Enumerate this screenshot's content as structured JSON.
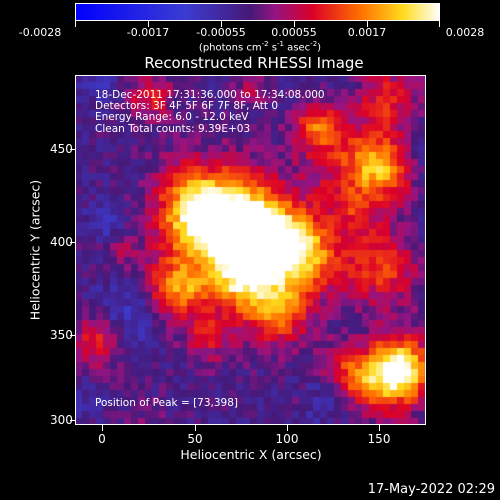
{
  "colorbar": {
    "labels": [
      "-0.0028",
      "-0.0017",
      "-0.00055",
      "0.00055",
      "0.0017",
      "0.0028"
    ],
    "unit_main": "(photons cm",
    "unit_exp1": "-2",
    "unit_mid": " s",
    "unit_exp2": "-1",
    "unit_mid2": " asec",
    "unit_exp3": "-2",
    "unit_end": ")"
  },
  "title": "Reconstructed RHESSI Image",
  "info": {
    "time": "18-Dec-2011 17:31:36.000 to 17:34:08.000",
    "detectors": "Detectors: 3F 4F 5F 6F 7F 8F, Att 0",
    "energy": "Energy Range: 6.0 - 12.0 keV",
    "algo": "Clean     Total counts: 9.39E+03"
  },
  "peak": "Position of Peak = [73,398]",
  "axes": {
    "xlabel": "Heliocentric X (arcsec)",
    "ylabel": "Heliocentric Y (arcsec)",
    "xticks": [
      "0",
      "50",
      "100",
      "150"
    ],
    "yticks": [
      "300",
      "350",
      "400",
      "450"
    ]
  },
  "timestamp": "17-May-2022 02:29",
  "image_colors": {
    "peak": "#ffffff",
    "bright": "#ffcc22",
    "mid": "#dd2200",
    "low": "#5a1f8c",
    "negative": "#1a3acc"
  }
}
